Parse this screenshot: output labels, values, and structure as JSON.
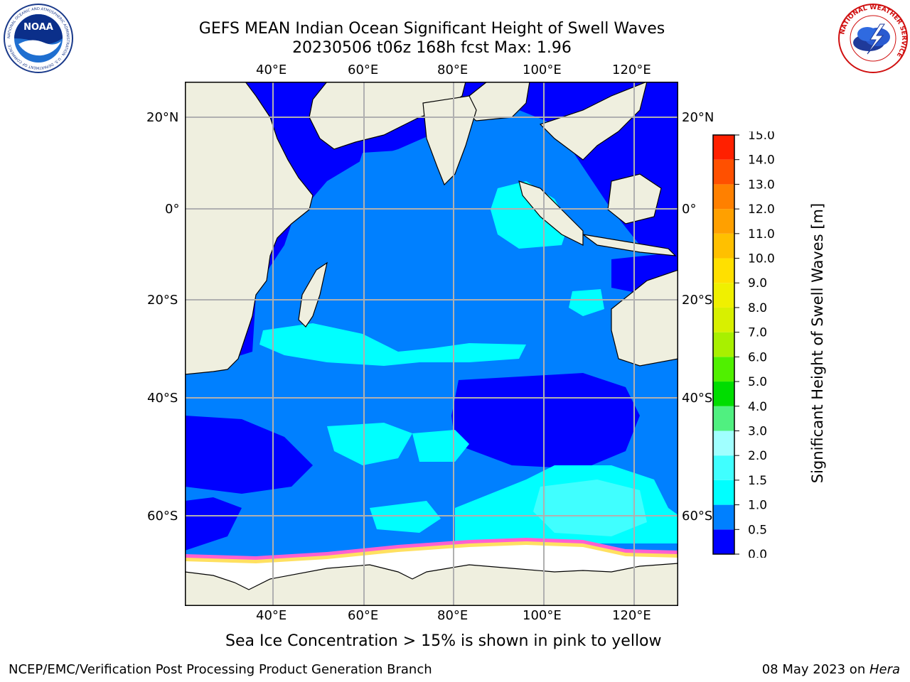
{
  "header": {
    "title_line1": "GEFS MEAN Indian Ocean Significant Height of Swell Waves",
    "title_line2": "20230506 t06z 168h fcst   Max: 1.96"
  },
  "logos": {
    "left_text": "NOAA",
    "left_ring_text": "NATIONAL OCEANIC AND ATMOSPHERIC ADMINISTRATION · U.S. DEPARTMENT OF COMMERCE",
    "right_ring_text": "NATIONAL WEATHER SERVICE"
  },
  "map": {
    "lon_labels": [
      "40°E",
      "60°E",
      "80°E",
      "100°E",
      "120°E"
    ],
    "lat_labels": [
      "20°N",
      "0°",
      "20°S",
      "40°S",
      "60°S"
    ],
    "land_color": "#efefdf",
    "grid_color": "#b0b0b0"
  },
  "colorbar": {
    "label": "Significant Height of Swell Waves [m]",
    "ticks": [
      "0.0",
      "0.5",
      "1.0",
      "1.5",
      "2.0",
      "3.0",
      "4.0",
      "5.0",
      "6.0",
      "7.0",
      "8.0",
      "9.0",
      "10.0",
      "11.0",
      "12.0",
      "13.0",
      "14.0",
      "15.0"
    ],
    "colors": [
      "#0000ff",
      "#0080ff",
      "#00ffff",
      "#40ffff",
      "#a0ffff",
      "#50f080",
      "#00dd00",
      "#50f000",
      "#a8f000",
      "#d8f000",
      "#f0f000",
      "#ffe000",
      "#ffc000",
      "#ffa000",
      "#ff8000",
      "#ff5000",
      "#ff2000"
    ]
  },
  "caption": "Sea Ice Concentration > 15% is shown in pink to yellow",
  "footer": {
    "left": "NCEP/EMC/Verification Post Processing Product Generation Branch",
    "right_date": "08 May 2023 on ",
    "right_host": "Hera"
  }
}
